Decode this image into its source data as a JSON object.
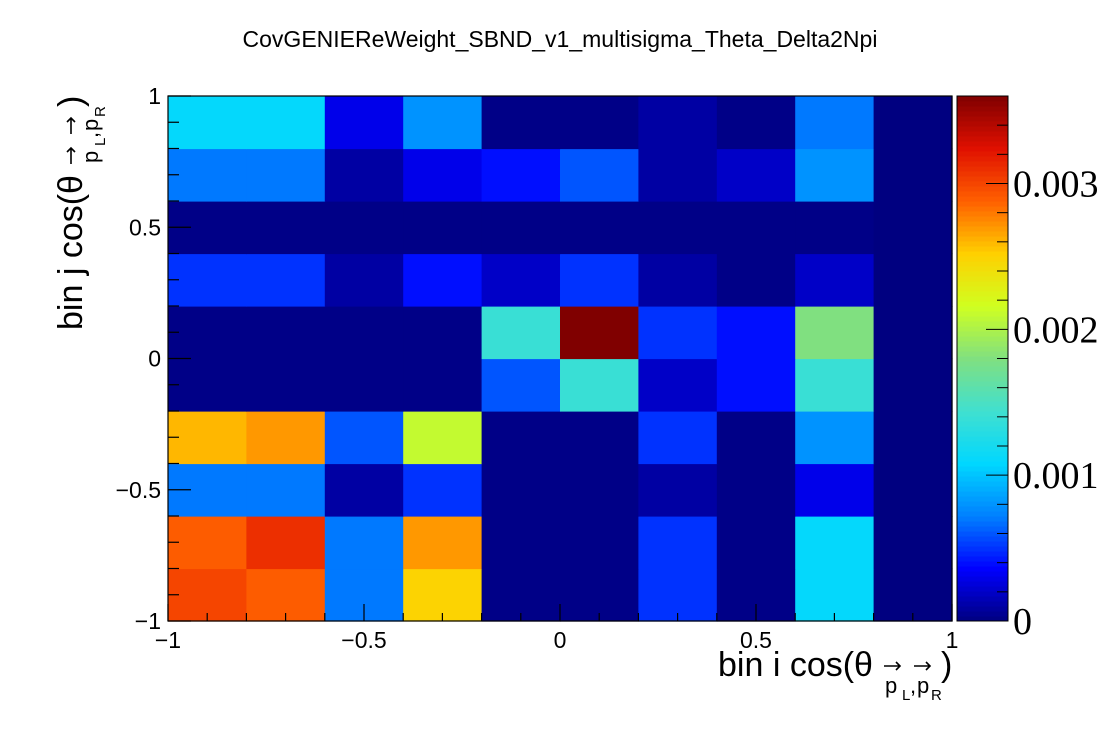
{
  "chart_data": {
    "type": "heatmap",
    "title": "CovGENIEReWeight_SBND_v1_multisigma_Theta_Delta2Npi",
    "xlabel": {
      "main": "bin i cos(θ",
      "sub1": "p",
      "sub1_idx": "L",
      "comma": ",",
      "sub2": "p",
      "sub2_idx": "R",
      "close": ")"
    },
    "ylabel": {
      "main": "bin j cos(θ",
      "sub1": "p",
      "sub1_idx": "L",
      "comma": ",",
      "sub2": "p",
      "sub2_idx": "R",
      "close": ")"
    },
    "xlim": [
      -1,
      1
    ],
    "ylim": [
      -1,
      1
    ],
    "x_ticks": [
      {
        "value": -1,
        "label": "−1"
      },
      {
        "value": -0.5,
        "label": "−0.5"
      },
      {
        "value": 0,
        "label": "0"
      },
      {
        "value": 0.5,
        "label": "0.5"
      },
      {
        "value": 1,
        "label": "1"
      }
    ],
    "y_ticks": [
      {
        "value": -1,
        "label": "−1"
      },
      {
        "value": -0.5,
        "label": "−0.5"
      },
      {
        "value": 0,
        "label": "0"
      },
      {
        "value": 0.5,
        "label": "0.5"
      },
      {
        "value": 1,
        "label": "1"
      }
    ],
    "nx": 10,
    "ny": 10,
    "z_range": [
      0,
      0.0036
    ],
    "z_ticks": [
      {
        "value": 0,
        "label": "0"
      },
      {
        "value": 0.001,
        "label": "0.001"
      },
      {
        "value": 0.002,
        "label": "0.002"
      },
      {
        "value": 0.003,
        "label": "0.003"
      }
    ],
    "colormap": [
      "#000080",
      "#0000ff",
      "#0080ff",
      "#00d7ff",
      "#40e0d0",
      "#80e080",
      "#d0ff20",
      "#ffd000",
      "#ff6000",
      "#e01000",
      "#800000"
    ],
    "values": [
      [
        0.003,
        0.0029,
        0.0007,
        0.0025,
        2e-05,
        2e-05,
        0.0005,
        2e-05,
        0.0011,
        0.0
      ],
      [
        0.0029,
        0.0031,
        0.0007,
        0.0027,
        2e-05,
        2e-05,
        0.0005,
        2e-05,
        0.0011,
        0.0
      ],
      [
        0.0007,
        0.0007,
        0.0001,
        0.0005,
        2e-05,
        2e-05,
        0.0001,
        2e-05,
        0.0003,
        0.0
      ],
      [
        0.0026,
        0.0027,
        0.0006,
        0.0021,
        2e-05,
        2e-05,
        0.0005,
        2e-05,
        0.0008,
        0.0
      ],
      [
        2e-05,
        2e-05,
        2e-05,
        2e-05,
        0.0006,
        0.0014,
        0.0002,
        0.0004,
        0.0014,
        0.0
      ],
      [
        2e-05,
        2e-05,
        2e-05,
        2e-05,
        0.0014,
        0.0036,
        0.0005,
        0.0004,
        0.0018,
        0.0
      ],
      [
        0.0005,
        0.0005,
        0.0001,
        0.0004,
        0.0002,
        0.0005,
        0.0001,
        2e-05,
        0.0002,
        0.0
      ],
      [
        2e-05,
        2e-05,
        2e-05,
        2e-05,
        2e-05,
        2e-05,
        2e-05,
        2e-05,
        2e-05,
        0.0
      ],
      [
        0.0007,
        0.0007,
        0.0001,
        0.0003,
        0.0004,
        0.0006,
        0.0001,
        0.0002,
        0.0008,
        0.0
      ],
      [
        0.0011,
        0.0011,
        0.0003,
        0.0008,
        2e-05,
        2e-05,
        0.0001,
        2e-05,
        0.0007,
        0.0
      ]
    ]
  }
}
